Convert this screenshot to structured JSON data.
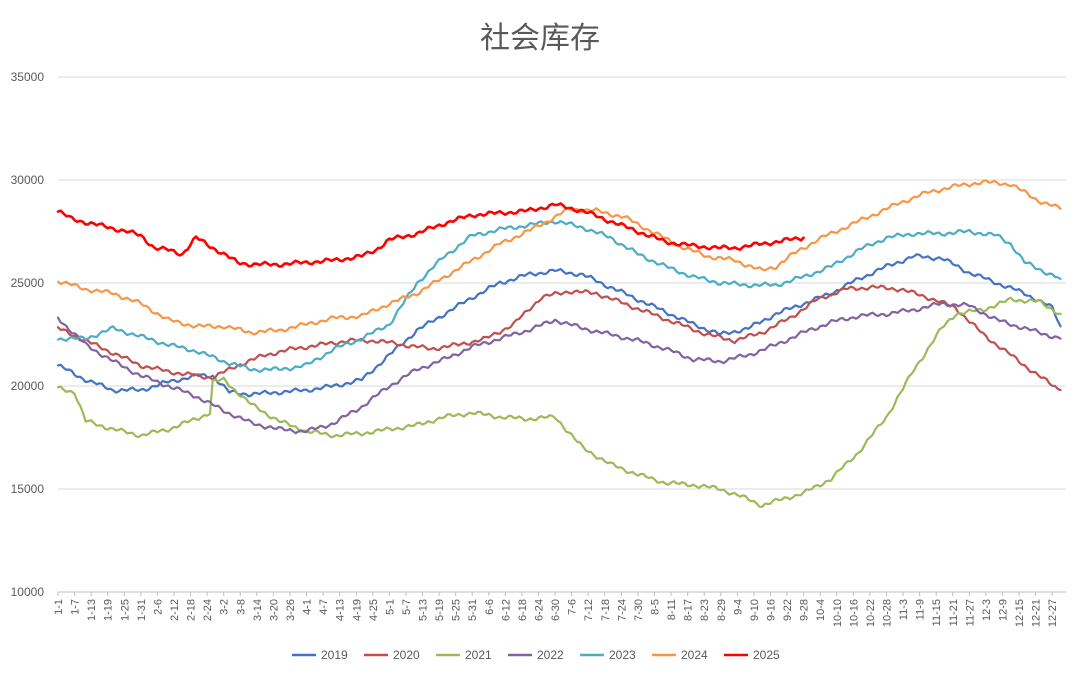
{
  "chart_data": {
    "type": "line",
    "title": "社会库存",
    "xlabel": "",
    "ylabel": "",
    "ylim": [
      10000,
      35000
    ],
    "yticks": [
      10000,
      15000,
      20000,
      25000,
      30000,
      35000
    ],
    "grid": true,
    "legend_position": "bottom",
    "x_tick_labels": [
      "1-1",
      "1-7",
      "1-13",
      "1-19",
      "1-25",
      "1-31",
      "2-6",
      "2-12",
      "2-18",
      "2-24",
      "3-2",
      "3-8",
      "3-14",
      "3-20",
      "3-26",
      "4-1",
      "4-7",
      "4-13",
      "4-19",
      "4-25",
      "5-1",
      "5-7",
      "5-13",
      "5-19",
      "5-25",
      "5-31",
      "6-6",
      "6-12",
      "6-18",
      "6-24",
      "6-30",
      "7-6",
      "7-12",
      "7-18",
      "7-24",
      "7-30",
      "8-5",
      "8-11",
      "8-17",
      "8-23",
      "8-29",
      "9-4",
      "9-10",
      "9-16",
      "9-22",
      "9-28",
      "10-4",
      "10-10",
      "10-16",
      "10-22",
      "10-28",
      "11-3",
      "11-9",
      "11-15",
      "11-21",
      "11-27",
      "12-3",
      "12-9",
      "12-15",
      "12-21",
      "12-27"
    ],
    "x_label_step_days": 6,
    "series": [
      {
        "name": "2019",
        "color": "#4472c4",
        "width": 2.2,
        "points": [
          [
            0,
            21000
          ],
          [
            10,
            20300
          ],
          [
            20,
            19800
          ],
          [
            30,
            19800
          ],
          [
            40,
            20200
          ],
          [
            50,
            20500
          ],
          [
            56,
            20500
          ],
          [
            62,
            19700
          ],
          [
            70,
            19600
          ],
          [
            80,
            19700
          ],
          [
            90,
            19800
          ],
          [
            100,
            20000
          ],
          [
            110,
            20300
          ],
          [
            120,
            21500
          ],
          [
            130,
            22700
          ],
          [
            140,
            23500
          ],
          [
            150,
            24300
          ],
          [
            160,
            25000
          ],
          [
            170,
            25400
          ],
          [
            180,
            25600
          ],
          [
            190,
            25400
          ],
          [
            200,
            24800
          ],
          [
            210,
            24200
          ],
          [
            220,
            23600
          ],
          [
            230,
            23000
          ],
          [
            240,
            22500
          ],
          [
            250,
            22800
          ],
          [
            260,
            23500
          ],
          [
            270,
            24000
          ],
          [
            280,
            24500
          ],
          [
            290,
            25200
          ],
          [
            300,
            25800
          ],
          [
            310,
            26300
          ],
          [
            320,
            26200
          ],
          [
            330,
            25500
          ],
          [
            340,
            25000
          ],
          [
            350,
            24500
          ],
          [
            360,
            23800
          ],
          [
            363,
            22900
          ]
        ]
      },
      {
        "name": "2020",
        "color": "#c0504d",
        "width": 2.2,
        "points": [
          [
            0,
            22800
          ],
          [
            10,
            22200
          ],
          [
            20,
            21600
          ],
          [
            30,
            21000
          ],
          [
            40,
            20700
          ],
          [
            50,
            20500
          ],
          [
            56,
            20400
          ],
          [
            65,
            21000
          ],
          [
            75,
            21500
          ],
          [
            85,
            21800
          ],
          [
            95,
            22000
          ],
          [
            105,
            22200
          ],
          [
            115,
            22200
          ],
          [
            125,
            22000
          ],
          [
            135,
            21800
          ],
          [
            145,
            22000
          ],
          [
            155,
            22300
          ],
          [
            165,
            23000
          ],
          [
            175,
            24300
          ],
          [
            185,
            24600
          ],
          [
            195,
            24500
          ],
          [
            205,
            24000
          ],
          [
            215,
            23500
          ],
          [
            225,
            23000
          ],
          [
            235,
            22500
          ],
          [
            245,
            22200
          ],
          [
            255,
            22600
          ],
          [
            265,
            23300
          ],
          [
            275,
            24200
          ],
          [
            285,
            24700
          ],
          [
            295,
            24800
          ],
          [
            305,
            24700
          ],
          [
            315,
            24300
          ],
          [
            325,
            23800
          ],
          [
            335,
            22500
          ],
          [
            345,
            21500
          ],
          [
            355,
            20500
          ],
          [
            363,
            19800
          ]
        ]
      },
      {
        "name": "2021",
        "color": "#9bbb59",
        "width": 2.2,
        "points": [
          [
            0,
            19900
          ],
          [
            6,
            19700
          ],
          [
            10,
            18300
          ],
          [
            20,
            17900
          ],
          [
            30,
            17600
          ],
          [
            40,
            17900
          ],
          [
            50,
            18400
          ],
          [
            55,
            18700
          ],
          [
            56,
            20200
          ],
          [
            60,
            20300
          ],
          [
            70,
            19100
          ],
          [
            80,
            18300
          ],
          [
            90,
            17800
          ],
          [
            100,
            17600
          ],
          [
            110,
            17700
          ],
          [
            120,
            17900
          ],
          [
            130,
            18100
          ],
          [
            140,
            18500
          ],
          [
            150,
            18700
          ],
          [
            160,
            18500
          ],
          [
            170,
            18400
          ],
          [
            180,
            18500
          ],
          [
            190,
            17000
          ],
          [
            200,
            16200
          ],
          [
            210,
            15700
          ],
          [
            220,
            15300
          ],
          [
            230,
            15200
          ],
          [
            240,
            15000
          ],
          [
            250,
            14500
          ],
          [
            255,
            14200
          ],
          [
            262,
            14500
          ],
          [
            270,
            14800
          ],
          [
            280,
            15500
          ],
          [
            290,
            16800
          ],
          [
            300,
            18500
          ],
          [
            310,
            20800
          ],
          [
            320,
            22800
          ],
          [
            325,
            23500
          ],
          [
            335,
            23700
          ],
          [
            345,
            24200
          ],
          [
            355,
            24100
          ],
          [
            363,
            23500
          ]
        ]
      },
      {
        "name": "2022",
        "color": "#8064a2",
        "width": 2.2,
        "points": [
          [
            0,
            23300
          ],
          [
            10,
            22000
          ],
          [
            20,
            21200
          ],
          [
            30,
            20500
          ],
          [
            40,
            20000
          ],
          [
            50,
            19500
          ],
          [
            60,
            18800
          ],
          [
            70,
            18200
          ],
          [
            80,
            17900
          ],
          [
            90,
            17800
          ],
          [
            100,
            18200
          ],
          [
            110,
            19000
          ],
          [
            120,
            20000
          ],
          [
            130,
            20800
          ],
          [
            140,
            21300
          ],
          [
            150,
            21900
          ],
          [
            160,
            22300
          ],
          [
            170,
            22700
          ],
          [
            180,
            23200
          ],
          [
            190,
            22800
          ],
          [
            200,
            22500
          ],
          [
            210,
            22200
          ],
          [
            220,
            21800
          ],
          [
            230,
            21300
          ],
          [
            240,
            21200
          ],
          [
            250,
            21500
          ],
          [
            260,
            22000
          ],
          [
            270,
            22600
          ],
          [
            280,
            23100
          ],
          [
            290,
            23400
          ],
          [
            300,
            23500
          ],
          [
            310,
            23700
          ],
          [
            320,
            24000
          ],
          [
            330,
            23900
          ],
          [
            340,
            23200
          ],
          [
            350,
            22800
          ],
          [
            363,
            22300
          ]
        ]
      },
      {
        "name": "2023",
        "color": "#4bacc6",
        "width": 2.2,
        "points": [
          [
            0,
            22300
          ],
          [
            10,
            22300
          ],
          [
            20,
            22800
          ],
          [
            30,
            22400
          ],
          [
            40,
            22000
          ],
          [
            50,
            21700
          ],
          [
            60,
            21200
          ],
          [
            70,
            20800
          ],
          [
            80,
            20800
          ],
          [
            90,
            21000
          ],
          [
            100,
            21800
          ],
          [
            110,
            22300
          ],
          [
            120,
            23000
          ],
          [
            130,
            25000
          ],
          [
            140,
            26300
          ],
          [
            150,
            27300
          ],
          [
            160,
            27600
          ],
          [
            170,
            27800
          ],
          [
            180,
            28000
          ],
          [
            190,
            27700
          ],
          [
            200,
            27200
          ],
          [
            210,
            26400
          ],
          [
            220,
            25800
          ],
          [
            230,
            25300
          ],
          [
            240,
            25000
          ],
          [
            250,
            24900
          ],
          [
            260,
            24900
          ],
          [
            270,
            25300
          ],
          [
            280,
            25800
          ],
          [
            290,
            26600
          ],
          [
            300,
            27200
          ],
          [
            310,
            27400
          ],
          [
            320,
            27400
          ],
          [
            330,
            27500
          ],
          [
            340,
            27300
          ],
          [
            345,
            26900
          ],
          [
            350,
            26000
          ],
          [
            363,
            25200
          ]
        ]
      },
      {
        "name": "2024",
        "color": "#f79646",
        "width": 2.2,
        "points": [
          [
            0,
            25100
          ],
          [
            10,
            24700
          ],
          [
            20,
            24500
          ],
          [
            30,
            24000
          ],
          [
            40,
            23200
          ],
          [
            50,
            22900
          ],
          [
            60,
            22900
          ],
          [
            70,
            22600
          ],
          [
            80,
            22700
          ],
          [
            90,
            23000
          ],
          [
            100,
            23300
          ],
          [
            110,
            23400
          ],
          [
            120,
            24000
          ],
          [
            130,
            24500
          ],
          [
            140,
            25300
          ],
          [
            150,
            26100
          ],
          [
            160,
            26900
          ],
          [
            170,
            27500
          ],
          [
            180,
            28200
          ],
          [
            185,
            28600
          ],
          [
            195,
            28500
          ],
          [
            205,
            28200
          ],
          [
            215,
            27500
          ],
          [
            225,
            26800
          ],
          [
            235,
            26300
          ],
          [
            245,
            26100
          ],
          [
            255,
            25600
          ],
          [
            260,
            25800
          ],
          [
            265,
            26300
          ],
          [
            275,
            27100
          ],
          [
            285,
            27700
          ],
          [
            295,
            28300
          ],
          [
            305,
            28900
          ],
          [
            315,
            29400
          ],
          [
            325,
            29700
          ],
          [
            335,
            29900
          ],
          [
            345,
            29800
          ],
          [
            355,
            29000
          ],
          [
            363,
            28600
          ]
        ]
      },
      {
        "name": "2025",
        "color": "#ff0000",
        "width": 2.6,
        "points": [
          [
            0,
            28500
          ],
          [
            5,
            28100
          ],
          [
            15,
            27800
          ],
          [
            25,
            27500
          ],
          [
            30,
            27300
          ],
          [
            35,
            26700
          ],
          [
            40,
            26600
          ],
          [
            45,
            26400
          ],
          [
            50,
            27200
          ],
          [
            55,
            26800
          ],
          [
            60,
            26400
          ],
          [
            65,
            26000
          ],
          [
            70,
            25900
          ],
          [
            80,
            25900
          ],
          [
            90,
            26000
          ],
          [
            100,
            26100
          ],
          [
            110,
            26300
          ],
          [
            115,
            26600
          ],
          [
            120,
            27100
          ],
          [
            130,
            27400
          ],
          [
            140,
            27900
          ],
          [
            150,
            28300
          ],
          [
            160,
            28400
          ],
          [
            170,
            28500
          ],
          [
            180,
            28800
          ],
          [
            190,
            28500
          ],
          [
            200,
            28000
          ],
          [
            210,
            27500
          ],
          [
            220,
            27000
          ],
          [
            230,
            26800
          ],
          [
            240,
            26700
          ],
          [
            245,
            26700
          ],
          [
            255,
            26900
          ],
          [
            265,
            27100
          ],
          [
            270,
            27200
          ]
        ]
      }
    ]
  }
}
